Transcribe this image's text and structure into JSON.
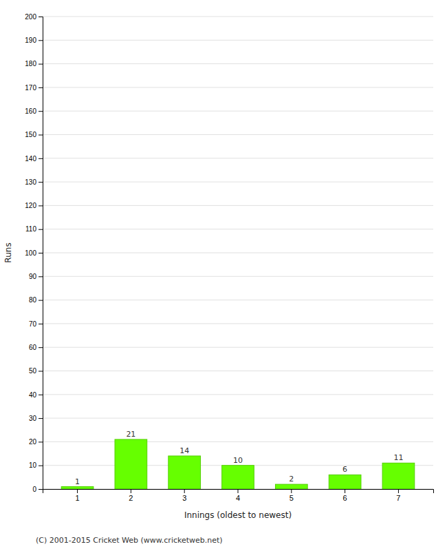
{
  "chart_data": {
    "type": "bar",
    "categories": [
      "1",
      "2",
      "3",
      "4",
      "5",
      "6",
      "7"
    ],
    "values": [
      1,
      21,
      14,
      10,
      2,
      6,
      11
    ],
    "color": "#66ff00",
    "xlabel": "Innings (oldest to newest)",
    "ylabel": "Runs",
    "ylim": [
      0,
      200
    ],
    "yticks": [
      0,
      10,
      20,
      30,
      40,
      50,
      60,
      70,
      80,
      90,
      100,
      110,
      120,
      130,
      140,
      150,
      160,
      170,
      180,
      190,
      200
    ],
    "grid": true,
    "data_labels": true,
    "annotations": [
      "(C) 2001-2015 Cricket Web (www.cricketweb.net)"
    ]
  }
}
